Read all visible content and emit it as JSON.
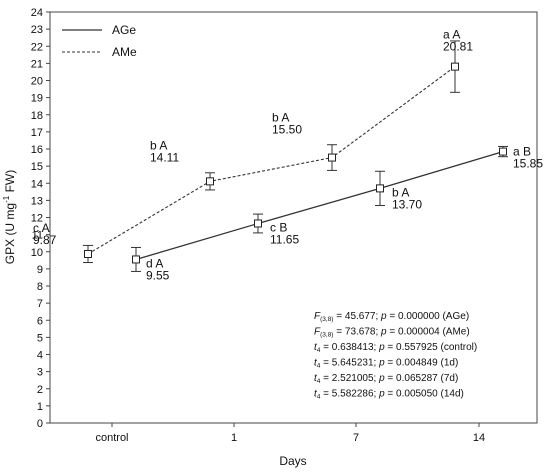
{
  "chart_data": {
    "type": "line",
    "xlabel": "Days",
    "ylabel_html": [
      "GPX (U mg",
      "-1",
      " FW)"
    ],
    "ylim": [
      0,
      24
    ],
    "yticks": [
      0,
      1,
      2,
      3,
      4,
      5,
      6,
      7,
      8,
      9,
      10,
      11,
      12,
      13,
      14,
      15,
      16,
      17,
      18,
      19,
      20,
      21,
      22,
      23,
      24
    ],
    "categories": [
      "control",
      "1",
      "7",
      "14"
    ],
    "legend_position": "top-left",
    "series": [
      {
        "name": "AGe",
        "style": "solid",
        "color": "#333333",
        "points": [
          {
            "category": "control",
            "value": 9.55,
            "err": 0.7,
            "group_letters": "d A",
            "value_label": "9.55"
          },
          {
            "category": "1",
            "value": 11.65,
            "err": 0.55,
            "group_letters": "c B",
            "value_label": "11.65"
          },
          {
            "category": "7",
            "value": 13.7,
            "err": 1.0,
            "group_letters": "b A",
            "value_label": "13.70"
          },
          {
            "category": "14",
            "value": 15.85,
            "err": 0.3,
            "group_letters": "a B",
            "value_label": "15.85"
          }
        ]
      },
      {
        "name": "AMe",
        "style": "dashed",
        "color": "#333333",
        "points": [
          {
            "category": "control",
            "value": 9.87,
            "err": 0.5,
            "group_letters": "c A",
            "value_label": "9.87"
          },
          {
            "category": "1",
            "value": 14.11,
            "err": 0.5,
            "group_letters": "b A",
            "value_label": "14.11"
          },
          {
            "category": "7",
            "value": 15.5,
            "err": 0.75,
            "group_letters": "b A",
            "value_label": "15.50"
          },
          {
            "category": "14",
            "value": 20.81,
            "err": 1.5,
            "group_letters": "a A",
            "value_label": "20.81"
          }
        ]
      }
    ],
    "stats": [
      {
        "prefix": "F",
        "sub": "(3,8)",
        "text": " = 45.677; ",
        "p": "p",
        "ptext": " = 0.000000 (AGe)"
      },
      {
        "prefix": "F",
        "sub": "(3,8)",
        "text": " = 73.678; ",
        "p": "p",
        "ptext": " = 0.000004 (AMe)"
      },
      {
        "prefix": "t",
        "sub": "4",
        "text": " = 0.638413; ",
        "p": "p",
        "ptext": " = 0.557925 (control)"
      },
      {
        "prefix": "t",
        "sub": "4",
        "text": " = 5.645231; ",
        "p": "p",
        "ptext": " = 0.004849 (1d)"
      },
      {
        "prefix": "t",
        "sub": "4",
        "text": " = 2.521005; ",
        "p": "p",
        "ptext": " = 0.065287 (7d)"
      },
      {
        "prefix": "t",
        "sub": "4",
        "text": " = 5.582286; ",
        "p": "p",
        "ptext": " = 0.005050 (14d)"
      }
    ]
  }
}
